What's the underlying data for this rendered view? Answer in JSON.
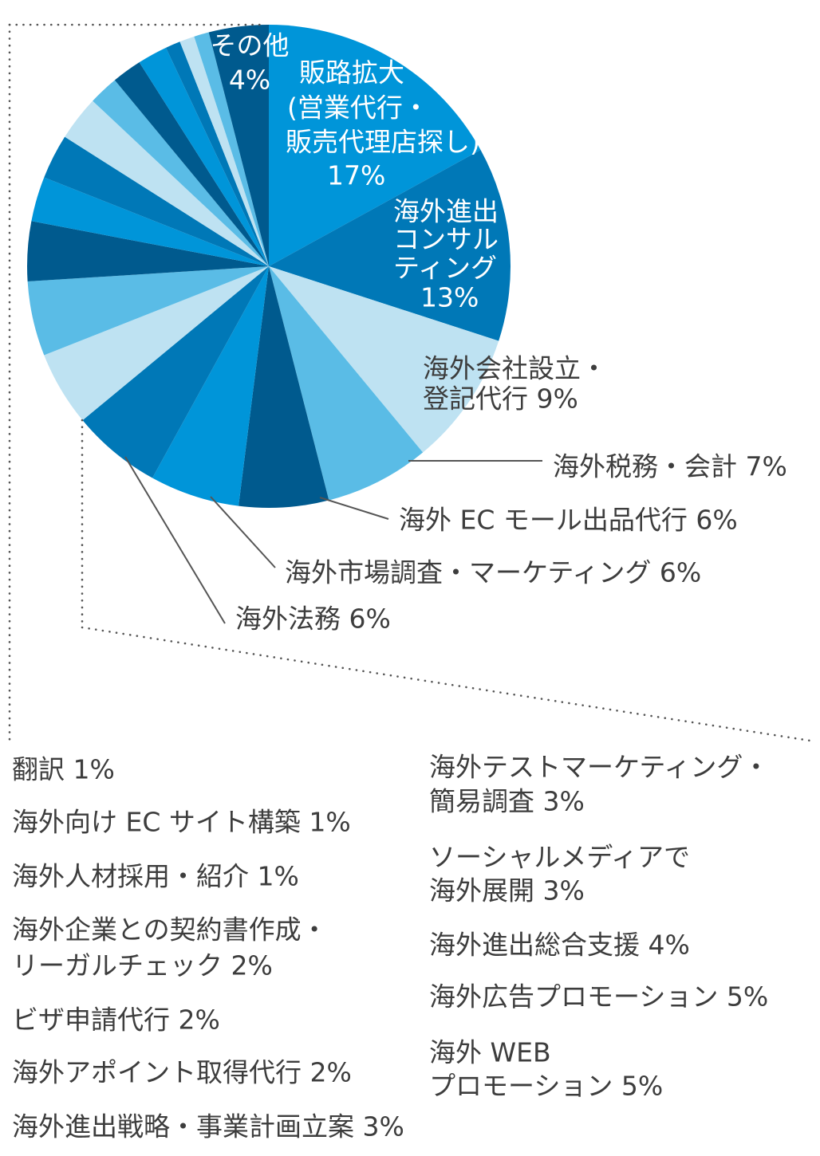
{
  "chart_data": {
    "type": "pie",
    "slices": [
      {
        "label_lines": [
          "販路拡大",
          "(営業代行・",
          "販売代理店探し)",
          "17%"
        ],
        "value": 17,
        "color": "#0095d9"
      },
      {
        "label_lines": [
          "海外進出",
          "コンサル",
          "ティング",
          "13%"
        ],
        "value": 13,
        "color": "#0078b7"
      },
      {
        "label_lines": [
          "海外会社設立・",
          "登記代行 9%"
        ],
        "value": 9,
        "color": "#bee2f2"
      },
      {
        "label_lines": [
          "海外税務・会計 7%"
        ],
        "value": 7,
        "color": "#5abce6"
      },
      {
        "label_lines": [
          "海外 EC モール出品代行 6%"
        ],
        "value": 6,
        "color": "#005a8e"
      },
      {
        "label_lines": [
          "海外市場調査・マーケティング 6%"
        ],
        "value": 6,
        "color": "#0095d9"
      },
      {
        "label_lines": [
          "海外法務 6%"
        ],
        "value": 6,
        "color": "#0078b7"
      },
      {
        "label_lines": [
          "海外 WEB",
          "プロモーション 5%"
        ],
        "value": 5,
        "color": "#bee2f2"
      },
      {
        "label_lines": [
          "海外広告プロモーション 5%"
        ],
        "value": 5,
        "color": "#5abce6"
      },
      {
        "label_lines": [
          "海外進出総合支援 4%"
        ],
        "value": 4,
        "color": "#005a8e"
      },
      {
        "label_lines": [
          "ソーシャルメディアで",
          "海外展開 3%"
        ],
        "value": 3,
        "color": "#0095d9"
      },
      {
        "label_lines": [
          "海外テストマーケティング・",
          "簡易調査 3%"
        ],
        "value": 3,
        "color": "#0078b7"
      },
      {
        "label_lines": [
          "海外進出戦略・事業計画立案 3%"
        ],
        "value": 3,
        "color": "#bee2f2"
      },
      {
        "label_lines": [
          "海外アポイント取得代行 2%"
        ],
        "value": 2,
        "color": "#5abce6"
      },
      {
        "label_lines": [
          "ビザ申請代行 2%"
        ],
        "value": 2,
        "color": "#005a8e"
      },
      {
        "label_lines": [
          "海外企業との契約書作成・",
          "リーガルチェック 2%"
        ],
        "value": 2,
        "color": "#0095d9"
      },
      {
        "label_lines": [
          "海外人材採用・紹介 1%"
        ],
        "value": 1,
        "color": "#0078b7"
      },
      {
        "label_lines": [
          "海外向け EC サイト構築 1%"
        ],
        "value": 1,
        "color": "#bee2f2"
      },
      {
        "label_lines": [
          "翻訳 1%"
        ],
        "value": 1,
        "color": "#5abce6"
      },
      {
        "label_lines": [
          "その他",
          "4%"
        ],
        "value": 4,
        "color": "#005a8e"
      }
    ]
  },
  "colors": {
    "label_text": "#3d3d3d",
    "label_text_on_dark": "#ffffff",
    "leader_line": "#555555"
  }
}
